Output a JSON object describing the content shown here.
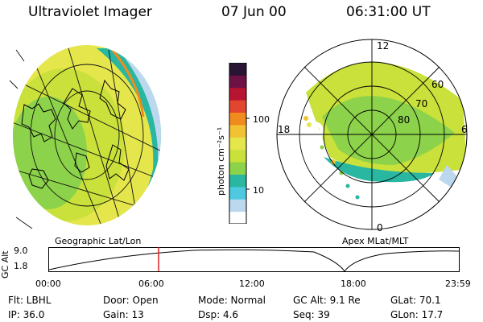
{
  "header": {
    "instrument": "Ultraviolet Imager",
    "date": "07 Jun 00",
    "time": "06:31:00 UT"
  },
  "left_panel": {
    "label": "Geographic Lat/Lon"
  },
  "right_panel": {
    "label": "Apex MLat/MLT",
    "mlt_labels": [
      "12",
      "18",
      "6",
      "0"
    ],
    "lat_labels": [
      "60",
      "70",
      "80"
    ]
  },
  "colorbar": {
    "unit_label": "photon cm⁻²s⁻¹",
    "tick_labels": [
      "100",
      "10"
    ],
    "colors": [
      "#ffffff",
      "#bcd8ef",
      "#4ec9e0",
      "#29b7a2",
      "#8cd24a",
      "#c9e13a",
      "#e4e64c",
      "#f1c232",
      "#f08c1d",
      "#e2462f",
      "#b81530",
      "#6e1245",
      "#281533"
    ]
  },
  "altitude_plot": {
    "axis_title": "GC Alt",
    "y_ticks": [
      "9.0",
      "1.8"
    ],
    "x_ticks": [
      "00:00",
      "06:00",
      "12:00",
      "18:00",
      "23:59"
    ],
    "marker_color": "#e02020"
  },
  "footer": {
    "filter": "Flt: LBHL",
    "door": "Door: Open",
    "mode": "Mode: Normal",
    "gc_alt": "GC Alt: 9.1 Re",
    "glat": "GLat:  70.1",
    "ip": "IP: 36.0",
    "gain": "Gain: 13",
    "dsp": "Dsp:     4.6",
    "seq": "Seq: 39",
    "glon": "GLon:  17.7"
  }
}
